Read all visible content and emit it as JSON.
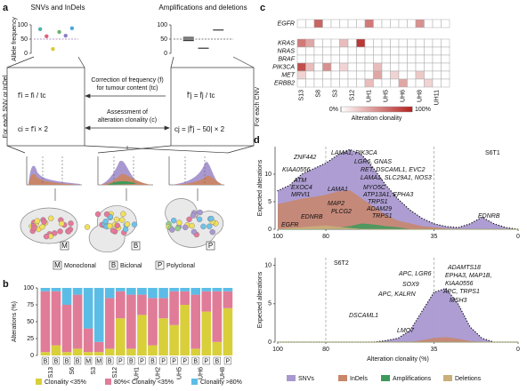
{
  "panel_labels": [
    "a",
    "b",
    "c",
    "d"
  ],
  "panel_a": {
    "titles": [
      "SNVs and InDels",
      "Amplifications and deletions"
    ],
    "y_label": "Allele frequency",
    "row_labels": [
      "For each SNV or InDel",
      "For each CNV"
    ],
    "steps": [
      [
        "Correction of frequency (f)",
        "for tumour content (tc)"
      ],
      [
        "Assessment of",
        "alteration clonality (c)"
      ]
    ],
    "formulas": {
      "snv_correction": "f′i = fi / tc",
      "snv_clonality": "ci = f′i × 2",
      "cnv_correction": "f̄′j = f̄j / tc",
      "cnv_clonality": "cj = |f̄′j − 50| × 2"
    },
    "clone_letters": [
      "M",
      "B",
      "P"
    ],
    "legend": [
      {
        "key": "M",
        "label": "Monoclonal"
      },
      {
        "key": "B",
        "label": "Biclonal"
      },
      {
        "key": "P",
        "label": "Polyclonal"
      }
    ]
  },
  "chart_data": [
    {
      "type": "scatter",
      "x": [
        1,
        2,
        3,
        4,
        5,
        6
      ],
      "values": [
        85,
        60,
        15,
        75,
        62,
        88
      ],
      "colors": [
        "#4fb3a9",
        "#e0607a",
        "#d9c93a",
        "#6bb36b",
        "#8a7fc7",
        "#4aa8d8"
      ],
      "xlim": [
        0,
        7
      ],
      "ylim": [
        0,
        100
      ],
      "yticks": [
        0,
        50,
        100
      ],
      "reference_line": 50,
      "reference_color": "#9b72b0",
      "marker": "dot"
    },
    {
      "type": "scatter",
      "x": [
        1,
        1,
        1,
        2,
        3
      ],
      "values": [
        45,
        50,
        56,
        18,
        82
      ],
      "colors": [
        "#333333",
        "#333333",
        "#333333",
        "#333333",
        "#333333"
      ],
      "xlim": [
        0,
        4
      ],
      "ylim": [
        0,
        100
      ],
      "yticks": [
        0,
        50,
        100
      ],
      "reference_line": 50,
      "reference_color": "#555555",
      "marker": "dash"
    },
    {
      "type": "bar",
      "stacked": true,
      "y_label": "Alterations (%)",
      "categories": [
        "S13",
        null,
        "S6",
        null,
        "S3",
        null,
        "S12",
        null,
        "UH1",
        null,
        "UH2",
        null,
        "UH5",
        null,
        "UH6",
        null,
        "UH8",
        null
      ],
      "bar_labels": [
        "B",
        "B",
        "B",
        "B",
        "M",
        "M",
        "B",
        "P",
        "B",
        "P",
        "B",
        "P",
        "P",
        "P",
        "B",
        "P",
        "B",
        "P"
      ],
      "series": [
        {
          "name": "Clonality <35%",
          "color": "#d9cf3a",
          "values": [
            5,
            15,
            5,
            10,
            5,
            5,
            10,
            55,
            10,
            60,
            15,
            55,
            45,
            75,
            10,
            65,
            20,
            70
          ]
        },
        {
          "name": "80%< Clonality <35%",
          "color": "#e07c98",
          "values": [
            90,
            80,
            70,
            80,
            35,
            15,
            75,
            40,
            80,
            30,
            70,
            30,
            50,
            20,
            80,
            30,
            75,
            25
          ]
        },
        {
          "name": "Clonality >80%",
          "color": "#5bbde6",
          "values": [
            5,
            5,
            25,
            10,
            60,
            80,
            15,
            5,
            10,
            10,
            15,
            15,
            5,
            5,
            10,
            5,
            5,
            5
          ]
        }
      ],
      "ylim": [
        0,
        100
      ],
      "yticks": [
        0,
        25,
        50,
        75,
        100
      ]
    },
    {
      "type": "heatmap",
      "rows": [
        "EGFR",
        "KRAS",
        "NRAS",
        "BRAF",
        "PIK3CA",
        "MET",
        "ERBB2"
      ],
      "columns": [
        "S13",
        null,
        "S8",
        null,
        "S3",
        null,
        "S12",
        null,
        "UH1",
        null,
        "UH5",
        null,
        "UH6",
        null,
        "UH8",
        null,
        "UH11",
        null
      ],
      "values": [
        [
          null,
          null,
          70,
          null,
          null,
          null,
          null,
          null,
          60,
          null,
          null,
          null,
          null,
          null,
          50,
          null,
          null,
          null
        ],
        [
          60,
          40,
          null,
          null,
          null,
          30,
          null,
          90,
          null,
          null,
          null,
          null,
          null,
          null,
          null,
          null,
          null,
          null
        ],
        [
          null,
          null,
          null,
          null,
          null,
          null,
          null,
          null,
          null,
          null,
          null,
          null,
          null,
          null,
          null,
          null,
          null,
          null
        ],
        [
          null,
          null,
          null,
          null,
          null,
          null,
          null,
          null,
          null,
          null,
          null,
          null,
          null,
          null,
          null,
          null,
          null,
          null
        ],
        [
          80,
          30,
          null,
          50,
          null,
          20,
          null,
          null,
          null,
          30,
          null,
          null,
          null,
          null,
          null,
          null,
          null,
          null
        ],
        [
          20,
          null,
          null,
          null,
          null,
          null,
          null,
          null,
          null,
          40,
          null,
          20,
          null,
          null,
          25,
          null,
          null,
          null
        ],
        [
          null,
          null,
          null,
          null,
          null,
          null,
          null,
          null,
          30,
          null,
          null,
          null,
          40,
          null,
          null,
          20,
          null,
          null
        ]
      ],
      "colorbar_title": "Alteration clonality",
      "colormap": [
        "#ffffff",
        "#b2221f"
      ],
      "clim": [
        0,
        100
      ],
      "cticks": [
        {
          "value": 0,
          "label": "0%"
        },
        {
          "value": 100,
          "label": "100%"
        }
      ]
    },
    {
      "type": "area",
      "sample": "S6T1",
      "y_label": "Expected alterations",
      "x": [
        100,
        95,
        90,
        85,
        80,
        75,
        70,
        65,
        60,
        55,
        50,
        45,
        40,
        35,
        30,
        25,
        20,
        15,
        10,
        5,
        0
      ],
      "series": [
        {
          "color": "#a998d0",
          "values": [
            7,
            8,
            10,
            11,
            12,
            13.5,
            14.5,
            13.5,
            11,
            8,
            5.5,
            3.5,
            2,
            1,
            0.5,
            0.3,
            1,
            2.2,
            1,
            0.3,
            0
          ]
        },
        {
          "color": "#c9866a",
          "values": [
            4.5,
            5,
            5.5,
            5.8,
            6.2,
            6.8,
            7,
            5.5,
            4,
            2.5,
            1.5,
            1,
            0.5,
            0.3,
            0.1,
            0,
            0,
            0,
            0,
            0,
            0
          ]
        },
        {
          "color": "#3d9a5a",
          "values": [
            0,
            0,
            0,
            0,
            0,
            0.3,
            0.5,
            1,
            0.8,
            0.5,
            0.3,
            0,
            0,
            0,
            0,
            0,
            0,
            0,
            0,
            0,
            0
          ]
        },
        {
          "color": "#c9b07a",
          "values": [
            0,
            0.2,
            0.3,
            0.5,
            0.6,
            0.4,
            0.2,
            0,
            0,
            0,
            0,
            0,
            0,
            0,
            0,
            0,
            0,
            0,
            0,
            0,
            0
          ]
        }
      ],
      "xlim": [
        100,
        0
      ],
      "xticks": [
        100,
        80,
        35,
        0
      ],
      "reference_lines": [
        80,
        35
      ],
      "ylim": [
        0,
        15
      ],
      "yticks": [
        0,
        5,
        10
      ],
      "annotations": [
        "ZNF442",
        "LAMA1, PIK3CA",
        "LGR6, GNAS",
        "RET, DSCAML1, EVC2",
        "KIAA0556",
        "LAMA1, SLC29A1, NOS3",
        "ATM",
        "EXOC4",
        "MRVI1",
        "LAMA1",
        "MYO5C",
        "ATP13A1, EPHA3",
        "TRPS1",
        "ADAM29",
        "MAP2",
        "TRPS1",
        "PLCG2",
        "EDNRB",
        "EGFR",
        "EDNRB"
      ]
    },
    {
      "type": "area",
      "sample": "S6T2",
      "y_label": "Expected alterations",
      "x_label": "Alteration clonality (%)",
      "x": [
        100,
        95,
        90,
        85,
        80,
        75,
        70,
        65,
        60,
        55,
        50,
        45,
        40,
        35,
        30,
        25,
        20,
        15,
        10,
        5,
        0
      ],
      "series": [
        {
          "name": "SNVs",
          "color": "#a998d0",
          "values": [
            0,
            0,
            0,
            0,
            0,
            0,
            0,
            0,
            0,
            0.2,
            0.5,
            1.5,
            4,
            6.5,
            7,
            5,
            2,
            0.5,
            0,
            0,
            0
          ]
        },
        {
          "name": "InDels",
          "color": "#c9866a",
          "values": [
            0,
            0,
            0,
            0,
            0,
            0,
            0,
            0,
            0,
            0,
            0,
            0,
            0.2,
            0.5,
            0.6,
            0.4,
            0.1,
            0,
            0,
            0,
            0
          ]
        },
        {
          "name": "Amplifications",
          "color": "#3d9a5a",
          "values": [
            0,
            0,
            0,
            0,
            0,
            0,
            0,
            0,
            0,
            0,
            0,
            0,
            0,
            0,
            0,
            0,
            0,
            0,
            0,
            0,
            0
          ]
        },
        {
          "name": "Deletions",
          "color": "#c9b07a",
          "values": [
            0,
            0,
            0,
            0,
            0,
            0,
            0,
            0,
            0,
            0,
            0,
            0,
            0,
            0,
            0,
            0,
            0,
            0,
            0,
            0,
            0
          ]
        }
      ],
      "xlim": [
        100,
        0
      ],
      "xticks": [
        100,
        80,
        35,
        0
      ],
      "reference_lines": [
        80,
        35
      ],
      "ylim": [
        0,
        11
      ],
      "yticks": [
        0,
        5,
        10
      ],
      "annotations": [
        "ADAMTS18",
        "EPHA3, MAP1B,",
        "KIAA0556",
        "APC, LGR6",
        "APC, TRPS1",
        "SOX9",
        "APC, KALRN",
        "MSH3",
        "DSCAML1",
        "LMO7"
      ]
    }
  ]
}
